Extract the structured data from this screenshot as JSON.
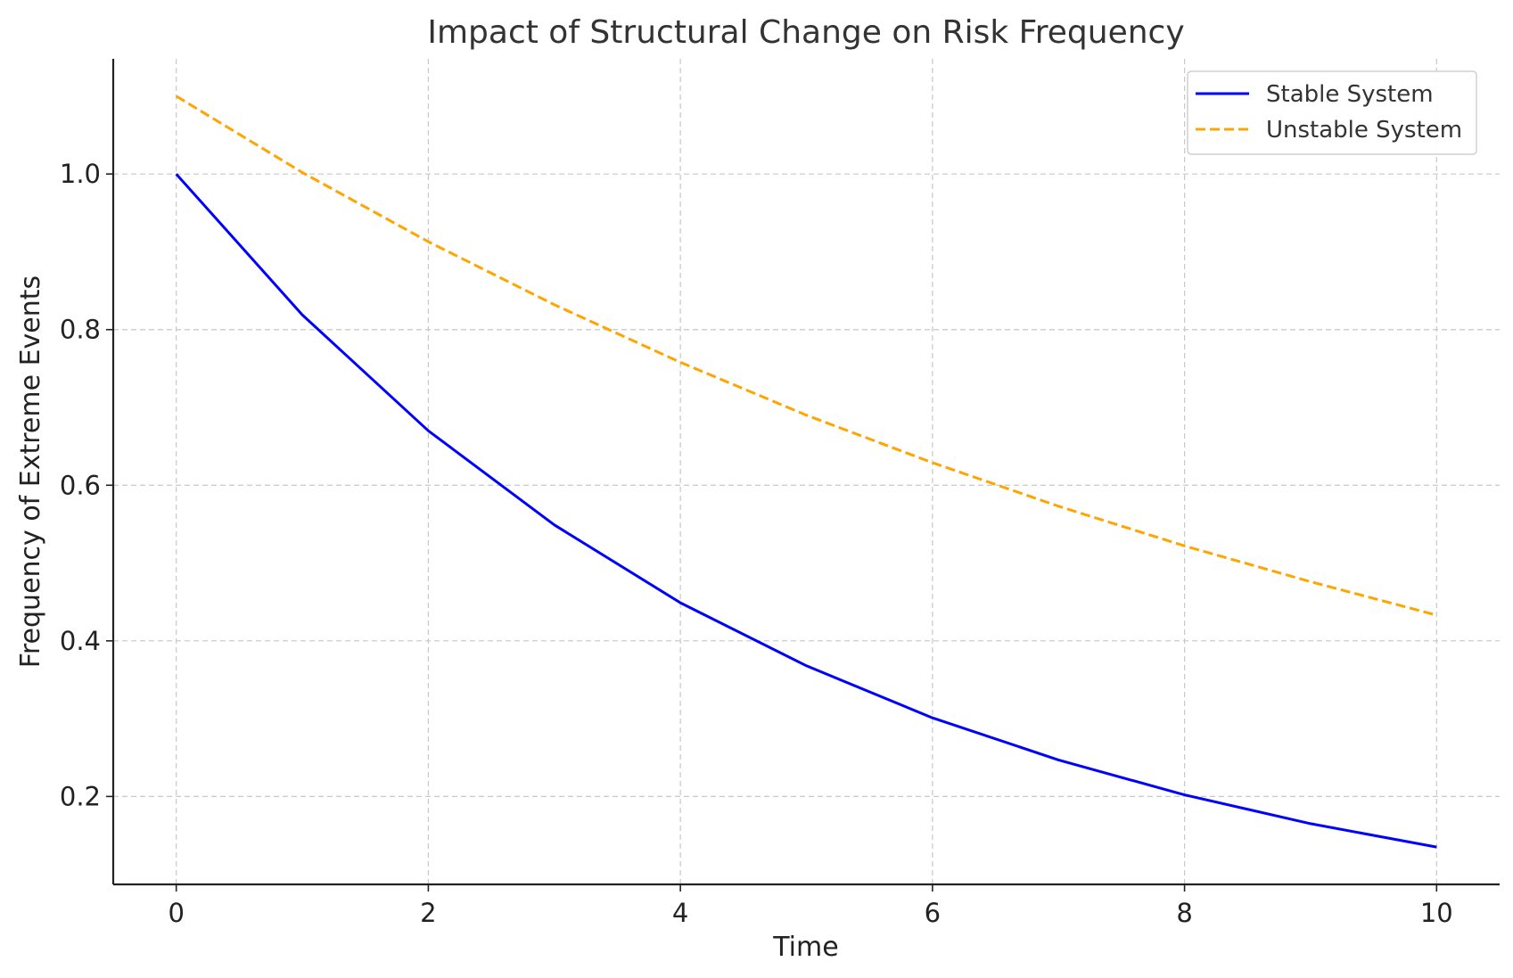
{
  "chart_data": {
    "type": "line",
    "title": "Impact of Structural Change on Risk Frequency",
    "xlabel": "Time",
    "ylabel": "Frequency of Extreme Events",
    "xlim": [
      -0.5,
      10.5
    ],
    "ylim": [
      0.087,
      1.148
    ],
    "xticks": [
      0,
      2,
      4,
      6,
      8,
      10
    ],
    "xtick_labels": [
      "0",
      "2",
      "4",
      "6",
      "8",
      "10"
    ],
    "yticks": [
      0.2,
      0.4,
      0.6,
      0.8,
      1.0
    ],
    "ytick_labels": [
      "0.2",
      "0.4",
      "0.6",
      "0.8",
      "1.0"
    ],
    "grid": true,
    "legend_position": "top-right",
    "x": [
      0,
      1,
      2,
      3,
      4,
      5,
      6,
      7,
      8,
      9,
      10
    ],
    "series": [
      {
        "name": "Stable System",
        "color": "#0000ff",
        "line_style": "solid",
        "values": [
          1.0,
          0.819,
          0.67,
          0.549,
          0.449,
          0.368,
          0.301,
          0.247,
          0.202,
          0.165,
          0.135
        ]
      },
      {
        "name": "Unstable System",
        "color": "#ffa500",
        "line_style": "dashed",
        "values": [
          1.1,
          1.002,
          0.913,
          0.832,
          0.758,
          0.69,
          0.629,
          0.573,
          0.522,
          0.476,
          0.433
        ]
      }
    ]
  }
}
